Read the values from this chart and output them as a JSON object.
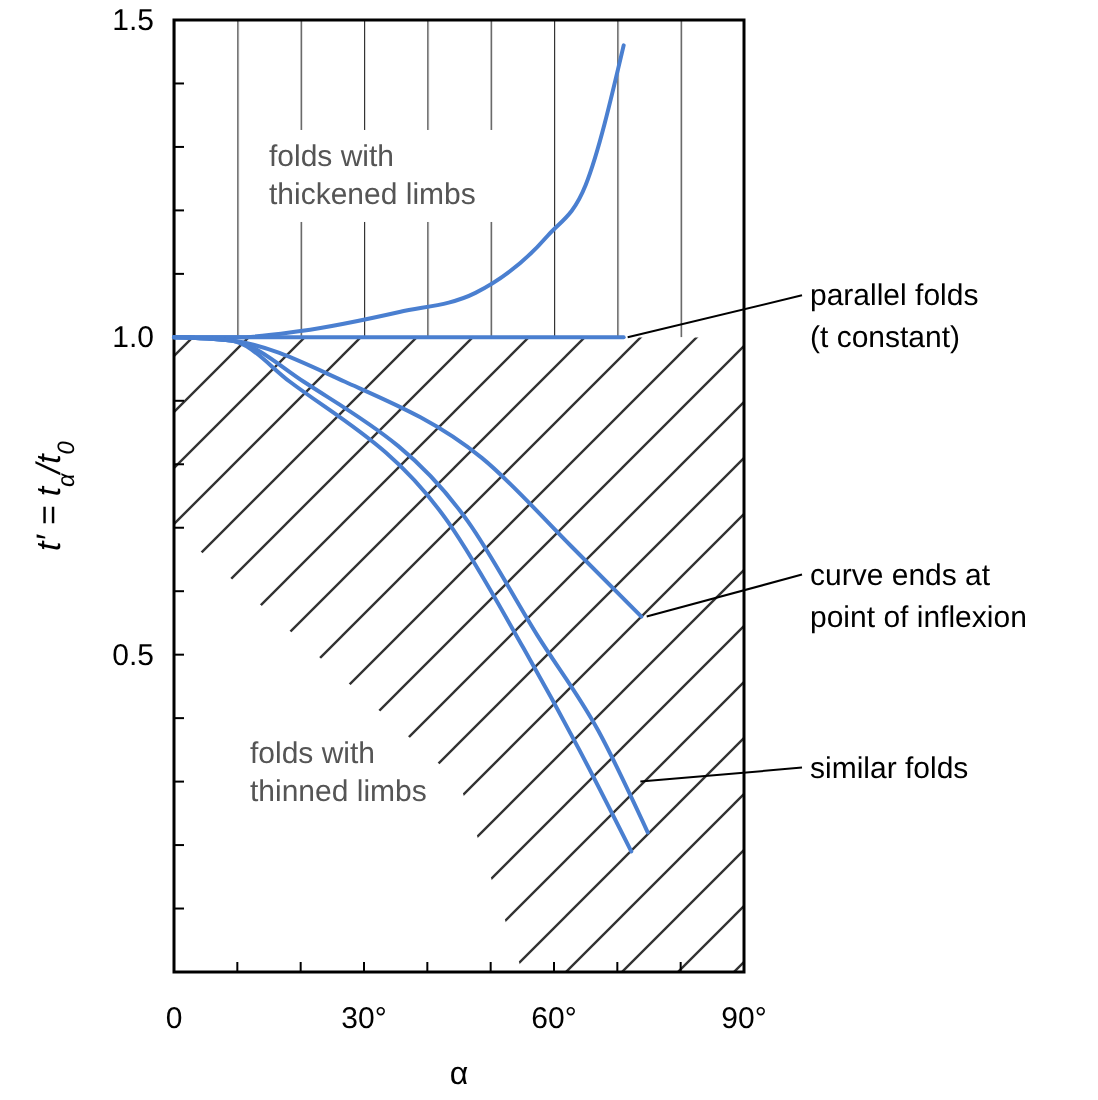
{
  "chart_data": {
    "type": "line",
    "xlabel": "α",
    "ylabel": "t′ = t$_{α}$/t$_{0}$",
    "xlim": [
      0,
      90
    ],
    "ylim": [
      0,
      1.5
    ],
    "xticks": [
      0,
      {
        "value": 10,
        "label": null
      },
      {
        "value": 20,
        "label": null
      },
      {
        "value": 30,
        "label": "30°"
      },
      {
        "value": 40,
        "label": null
      },
      {
        "value": 50,
        "label": null
      },
      {
        "value": 60,
        "label": "60°"
      },
      {
        "value": 70,
        "label": null
      },
      {
        "value": 80,
        "label": null
      },
      {
        "value": 90,
        "label": "90°"
      }
    ],
    "yticks": [
      {
        "value": 0.1,
        "label": null
      },
      {
        "value": 0.2,
        "label": null
      },
      {
        "value": 0.3,
        "label": null
      },
      {
        "value": 0.4,
        "label": null
      },
      0.5,
      {
        "value": 0.6,
        "label": null
      },
      {
        "value": 0.7,
        "label": null
      },
      {
        "value": 0.8,
        "label": null
      },
      {
        "value": 0.9,
        "label": null
      },
      {
        "value": 1,
        "label": "1.0"
      },
      {
        "value": 1.1,
        "label": null
      },
      {
        "value": 1.2,
        "label": null
      },
      {
        "value": 1.3,
        "label": null
      },
      {
        "value": 1.4,
        "label": null
      },
      1.5
    ],
    "series": [
      {
        "color": "#4a7fd0",
        "x": [
          0,
          10,
          20,
          35.6,
          47.6,
          59,
          65,
          71
        ],
        "values": [
          1,
          1,
          1.01,
          1.04,
          1.07,
          1.16,
          1.24,
          1.46
        ]
      },
      {
        "color": "#4a7fd0",
        "x": [
          0,
          71
        ],
        "values": [
          1,
          1
        ]
      },
      {
        "color": "#4a7fd0",
        "x": [
          0,
          9,
          27,
          48.6,
          62.8,
          73.8
        ],
        "values": [
          1,
          0.995,
          0.93,
          0.81,
          0.67,
          0.56
        ]
      },
      {
        "color": "#4a7fd0",
        "x": [
          0,
          9,
          20.5,
          46.4,
          57.4,
          67,
          74.8
        ],
        "values": [
          1,
          0.995,
          0.93,
          0.71,
          0.53,
          0.38,
          0.22
        ]
      },
      {
        "color": "#4a7fd0",
        "x": [
          0,
          9,
          18.3,
          43.2,
          55.2,
          64,
          72.2
        ],
        "values": [
          1,
          0.995,
          0.93,
          0.71,
          0.51,
          0.35,
          0.19
        ]
      }
    ],
    "bands": [
      {
        "axis": "y",
        "from": 1,
        "to": 1.5,
        "label": "folds with\nthickened limbs",
        "color": "#333333"
      },
      {
        "axis": "y",
        "from": 0,
        "to": 1,
        "label": "folds with\nthinned limbs",
        "color": "#333333"
      }
    ],
    "annotations": [
      {
        "text": "parallel folds\n(t constant)",
        "x": 71,
        "y": 1
      },
      {
        "text": "curve ends at\npoint of inflexion",
        "x": 74,
        "y": 0.56
      },
      {
        "text": "similar folds",
        "x": 73,
        "y": 0.3
      }
    ]
  }
}
